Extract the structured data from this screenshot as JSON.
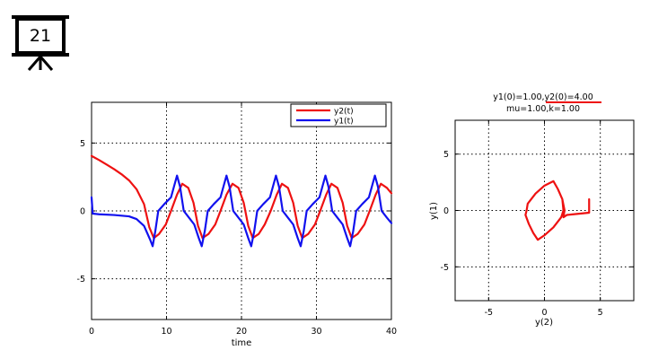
{
  "slide": {
    "number": "21",
    "icon": "presentation-board-icon"
  },
  "chart_data": [
    {
      "type": "line",
      "title": "",
      "xlabel": "time",
      "ylabel": "",
      "xlim": [
        0,
        40
      ],
      "ylim": [
        -8,
        8
      ],
      "xticks": [
        0,
        10,
        20,
        30,
        40
      ],
      "yticks": [
        -5,
        0,
        5
      ],
      "grid": true,
      "legend_position": "top-right",
      "series": [
        {
          "name": "y2(t)",
          "color": "#ee1111",
          "points": [
            [
              0,
              4.05
            ],
            [
              1,
              3.75
            ],
            [
              2,
              3.42
            ],
            [
              3,
              3.08
            ],
            [
              4,
              2.7
            ],
            [
              5,
              2.25
            ],
            [
              6,
              1.6
            ],
            [
              7,
              0.5
            ],
            [
              7.7,
              -1.2
            ],
            [
              8.3,
              -2.0
            ],
            [
              9,
              -1.7
            ],
            [
              9.9,
              -1.0
            ],
            [
              10.6,
              0.0
            ],
            [
              11.4,
              1.2
            ],
            [
              12.1,
              2.0
            ],
            [
              12.9,
              1.7
            ],
            [
              13.6,
              0.6
            ],
            [
              14.2,
              -1.1
            ],
            [
              14.8,
              -2.0
            ],
            [
              15.6,
              -1.7
            ],
            [
              16.5,
              -1.0
            ],
            [
              17.2,
              0.0
            ],
            [
              18,
              1.2
            ],
            [
              18.8,
              2.0
            ],
            [
              19.6,
              1.7
            ],
            [
              20.3,
              0.6
            ],
            [
              20.9,
              -1.1
            ],
            [
              21.5,
              -2.0
            ],
            [
              22.3,
              -1.7
            ],
            [
              23.1,
              -1.0
            ],
            [
              23.9,
              0.0
            ],
            [
              24.7,
              1.2
            ],
            [
              25.4,
              2.0
            ],
            [
              26.2,
              1.7
            ],
            [
              26.9,
              0.6
            ],
            [
              27.5,
              -1.1
            ],
            [
              28.1,
              -2.0
            ],
            [
              28.9,
              -1.7
            ],
            [
              29.8,
              -1.0
            ],
            [
              30.5,
              0.0
            ],
            [
              31.3,
              1.2
            ],
            [
              32,
              2.0
            ],
            [
              32.8,
              1.7
            ],
            [
              33.5,
              0.6
            ],
            [
              34.1,
              -1.1
            ],
            [
              34.7,
              -2.0
            ],
            [
              35.5,
              -1.7
            ],
            [
              36.4,
              -1.0
            ],
            [
              37.1,
              0.0
            ],
            [
              37.9,
              1.2
            ],
            [
              38.6,
              2.0
            ],
            [
              39.4,
              1.7
            ],
            [
              40,
              1.3
            ]
          ]
        },
        {
          "name": "y1(t)",
          "color": "#1111ee",
          "points": [
            [
              0,
              1.0
            ],
            [
              0.15,
              -0.2
            ],
            [
              1,
              -0.25
            ],
            [
              3,
              -0.3
            ],
            [
              5,
              -0.4
            ],
            [
              6,
              -0.6
            ],
            [
              7,
              -1.1
            ],
            [
              7.8,
              -2.1
            ],
            [
              8.15,
              -2.6
            ],
            [
              8.5,
              -1.5
            ],
            [
              8.9,
              0.0
            ],
            [
              9.7,
              0.5
            ],
            [
              10.6,
              1.0
            ],
            [
              11.0,
              1.8
            ],
            [
              11.4,
              2.6
            ],
            [
              11.8,
              1.8
            ],
            [
              12.3,
              0.0
            ],
            [
              13.0,
              -0.5
            ],
            [
              13.7,
              -1.0
            ],
            [
              14.3,
              -2.0
            ],
            [
              14.7,
              -2.6
            ],
            [
              15.1,
              -1.5
            ],
            [
              15.5,
              0.0
            ],
            [
              16.3,
              0.5
            ],
            [
              17.2,
              1.0
            ],
            [
              17.6,
              1.8
            ],
            [
              18.0,
              2.6
            ],
            [
              18.4,
              1.8
            ],
            [
              18.9,
              0.0
            ],
            [
              19.6,
              -0.5
            ],
            [
              20.3,
              -1.0
            ],
            [
              20.9,
              -2.0
            ],
            [
              21.3,
              -2.6
            ],
            [
              21.7,
              -1.5
            ],
            [
              22.1,
              0.0
            ],
            [
              22.9,
              0.5
            ],
            [
              23.8,
              1.0
            ],
            [
              24.2,
              1.8
            ],
            [
              24.6,
              2.6
            ],
            [
              25.0,
              1.8
            ],
            [
              25.5,
              0.0
            ],
            [
              26.2,
              -0.5
            ],
            [
              26.9,
              -1.0
            ],
            [
              27.5,
              -2.0
            ],
            [
              27.9,
              -2.6
            ],
            [
              28.3,
              -1.5
            ],
            [
              28.7,
              0.0
            ],
            [
              29.5,
              0.5
            ],
            [
              30.4,
              1.0
            ],
            [
              30.8,
              1.8
            ],
            [
              31.2,
              2.6
            ],
            [
              31.6,
              1.8
            ],
            [
              32.1,
              0.0
            ],
            [
              32.8,
              -0.5
            ],
            [
              33.5,
              -1.0
            ],
            [
              34.1,
              -2.0
            ],
            [
              34.5,
              -2.6
            ],
            [
              34.9,
              -1.5
            ],
            [
              35.3,
              0.0
            ],
            [
              36.1,
              0.5
            ],
            [
              37.0,
              1.0
            ],
            [
              37.4,
              1.8
            ],
            [
              37.8,
              2.6
            ],
            [
              38.2,
              1.8
            ],
            [
              38.7,
              0.0
            ],
            [
              39.4,
              -0.5
            ],
            [
              40,
              -0.9
            ]
          ]
        }
      ]
    },
    {
      "type": "line",
      "title": "y1(0)=1.00,y2(0)=4.00",
      "subtitle": "mu=1.00,k=1.00",
      "xlabel": "y(2)",
      "ylabel": "y(1)",
      "xlim": [
        -8,
        8
      ],
      "ylim": [
        -8,
        8
      ],
      "xticks": [
        -5,
        0,
        5
      ],
      "yticks": [
        -5,
        0,
        5
      ],
      "grid": true,
      "series": [
        {
          "name": "",
          "color": "#ee1111",
          "points": [
            [
              4.0,
              1.0
            ],
            [
              4.0,
              -0.2
            ],
            [
              3.0,
              -0.3
            ],
            [
              2.0,
              -0.4
            ],
            [
              1.7,
              -0.6
            ],
            [
              1.8,
              0.0
            ],
            [
              1.6,
              1.0
            ],
            [
              1.2,
              1.9
            ],
            [
              0.8,
              2.6
            ],
            [
              0.0,
              2.2
            ],
            [
              -0.8,
              1.5
            ],
            [
              -1.5,
              0.6
            ],
            [
              -1.6,
              0.0
            ],
            [
              -1.7,
              -0.4
            ],
            [
              -1.4,
              -1.2
            ],
            [
              -1.0,
              -2.0
            ],
            [
              -0.6,
              -2.6
            ],
            [
              0.0,
              -2.2
            ],
            [
              0.8,
              -1.5
            ],
            [
              1.5,
              -0.6
            ],
            [
              1.7,
              0.0
            ],
            [
              1.6,
              1.0
            ],
            [
              1.2,
              1.9
            ],
            [
              0.8,
              2.6
            ],
            [
              0.0,
              2.2
            ],
            [
              -0.8,
              1.5
            ],
            [
              -1.5,
              0.6
            ],
            [
              -1.6,
              0.0
            ],
            [
              -1.7,
              -0.4
            ],
            [
              -1.4,
              -1.2
            ],
            [
              -1.0,
              -2.0
            ],
            [
              -0.6,
              -2.6
            ],
            [
              0.0,
              -2.2
            ],
            [
              0.8,
              -1.5
            ],
            [
              1.5,
              -0.6
            ],
            [
              1.7,
              0.0
            ]
          ]
        }
      ]
    }
  ]
}
